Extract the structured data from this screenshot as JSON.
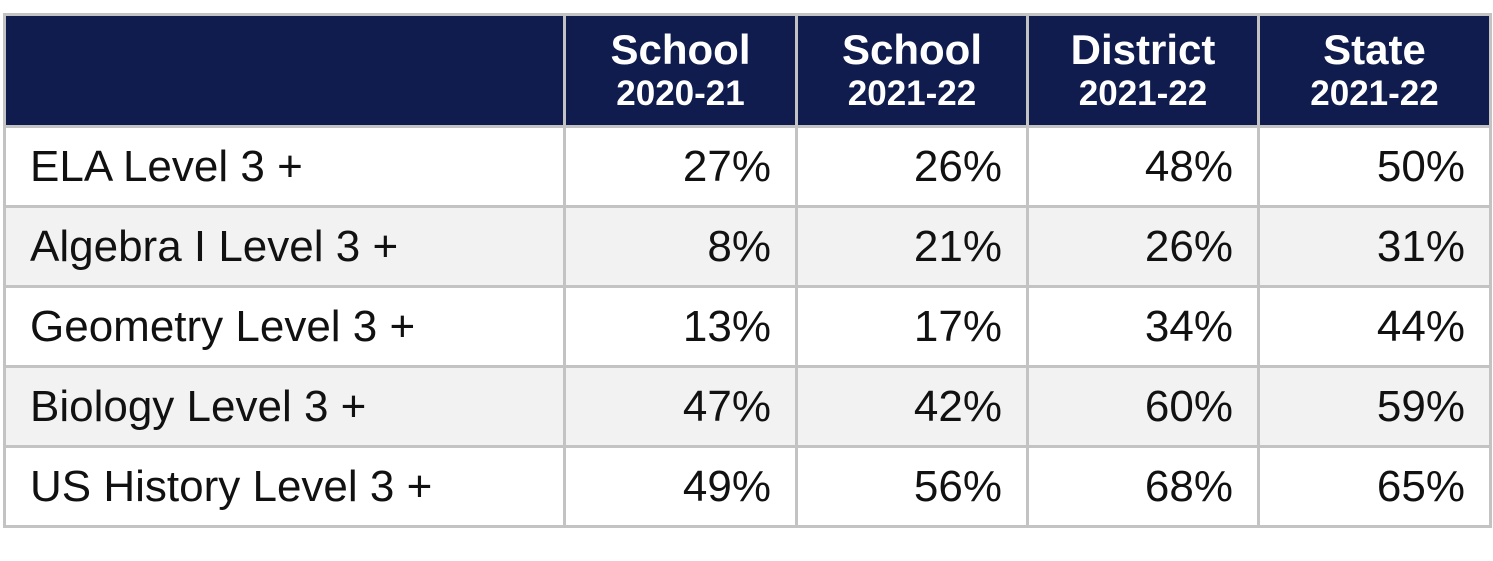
{
  "table": {
    "header": [
      {
        "title": "School",
        "year": "2020-21"
      },
      {
        "title": "School",
        "year": "2021-22"
      },
      {
        "title": "District",
        "year": "2021-22"
      },
      {
        "title": "State",
        "year": "2021-22"
      }
    ],
    "rows": [
      [
        "ELA Level 3 +",
        "27%",
        "26%",
        "48%",
        "50%"
      ],
      [
        "Algebra I Level 3 +",
        "8%",
        "21%",
        "26%",
        "31%"
      ],
      [
        "Geometry Level 3 +",
        "13%",
        "17%",
        "34%",
        "44%"
      ],
      [
        "Biology Level 3 +",
        "47%",
        "42%",
        "60%",
        "59%"
      ],
      [
        "US History Level 3 +",
        "49%",
        "56%",
        "68%",
        "65%"
      ]
    ]
  }
}
